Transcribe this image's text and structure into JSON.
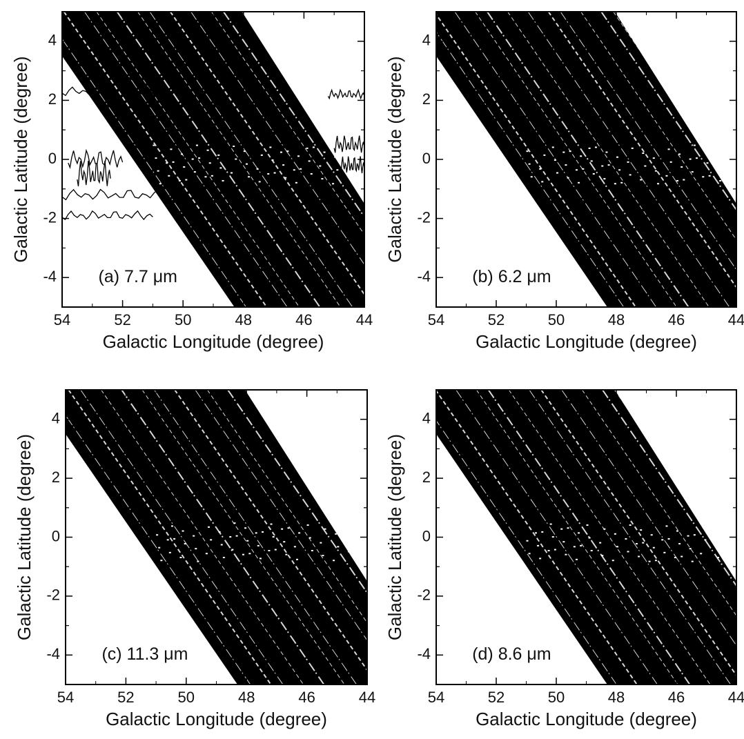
{
  "chart_data": [
    {
      "type": "contour",
      "annotation": "(a) 7.7 μm",
      "xlabel": "Galactic Longitude (degree)",
      "ylabel": "Galactic Latitude (degree)",
      "xlim": [
        54,
        44
      ],
      "ylim": [
        -5,
        5
      ],
      "xticks": [
        54,
        52,
        50,
        48,
        46,
        44
      ],
      "yticks": [
        -4,
        -2,
        0,
        2,
        4
      ]
    },
    {
      "type": "contour",
      "annotation": "(b) 6.2 μm",
      "xlabel": "Galactic Longitude (degree)",
      "ylabel": "Galactic Latitude (degree)",
      "xlim": [
        54,
        44
      ],
      "ylim": [
        -5,
        5
      ],
      "xticks": [
        54,
        52,
        50,
        48,
        46,
        44
      ],
      "yticks": [
        -4,
        -2,
        0,
        2,
        4
      ]
    },
    {
      "type": "contour",
      "annotation": "(c) 11.3 μm",
      "xlabel": "Galactic Longitude (degree)",
      "ylabel": "Galactic Latitude (degree)",
      "xlim": [
        54,
        44
      ],
      "ylim": [
        -5,
        5
      ],
      "xticks": [
        54,
        52,
        50,
        48,
        46,
        44
      ],
      "yticks": [
        -4,
        -2,
        0,
        2,
        4
      ]
    },
    {
      "type": "contour",
      "annotation": "(d) 8.6 μm",
      "xlabel": "Galactic Longitude (degree)",
      "ylabel": "Galactic Latitude (degree)",
      "xlim": [
        54,
        44
      ],
      "ylim": [
        -5,
        5
      ],
      "xticks": [
        54,
        52,
        50,
        48,
        46,
        44
      ],
      "yticks": [
        -4,
        -2,
        0,
        2,
        4
      ]
    }
  ]
}
